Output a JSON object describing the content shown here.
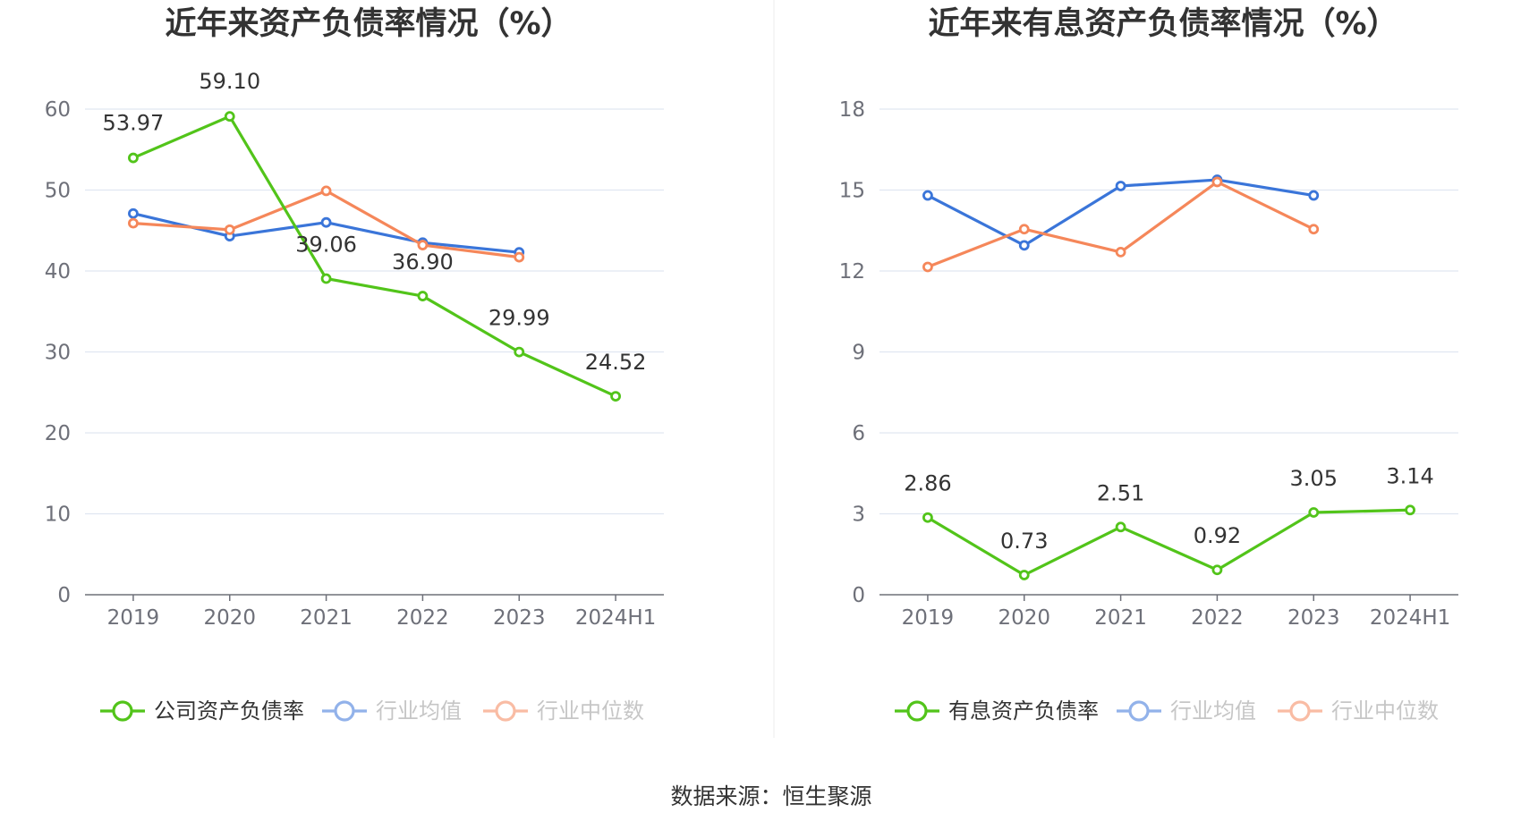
{
  "source_label": "数据来源：恒生聚源",
  "chart_data": [
    {
      "type": "line",
      "title": "近年来资产负债率情况（%）",
      "categories": [
        "2019",
        "2020",
        "2021",
        "2022",
        "2023",
        "2024H1"
      ],
      "ylim": [
        0,
        60
      ],
      "yticks": [
        0,
        10,
        20,
        30,
        40,
        50,
        60
      ],
      "grid": true,
      "legend_position": "bottom",
      "series": [
        {
          "name": "公司资产负债率",
          "color": "#52c41a",
          "values": [
            53.97,
            59.1,
            39.06,
            36.9,
            29.99,
            24.52
          ],
          "labels": [
            "53.97",
            "59.10",
            "39.06",
            "36.90",
            "29.99",
            "24.52"
          ]
        },
        {
          "name": "行业均值",
          "color": "#3a75d9",
          "values": [
            47.1,
            44.3,
            46.0,
            43.5,
            42.3,
            null
          ]
        },
        {
          "name": "行业中位数",
          "color": "#f5875a",
          "values": [
            45.9,
            45.1,
            49.9,
            43.2,
            41.7,
            null
          ]
        }
      ]
    },
    {
      "type": "line",
      "title": "近年来有息资产负债率情况（%）",
      "categories": [
        "2019",
        "2020",
        "2021",
        "2022",
        "2023",
        "2024H1"
      ],
      "ylim": [
        0,
        18
      ],
      "yticks": [
        0,
        3,
        6,
        9,
        12,
        15,
        18
      ],
      "grid": true,
      "legend_position": "bottom",
      "series": [
        {
          "name": "有息资产负债率",
          "color": "#52c41a",
          "values": [
            2.86,
            0.73,
            2.51,
            0.92,
            3.05,
            3.14
          ],
          "labels": [
            "2.86",
            "0.73",
            "2.51",
            "0.92",
            "3.05",
            "3.14"
          ]
        },
        {
          "name": "行业均值",
          "color": "#3a75d9",
          "values": [
            14.8,
            12.95,
            15.15,
            15.38,
            14.8,
            null
          ]
        },
        {
          "name": "行业中位数",
          "color": "#f5875a",
          "values": [
            12.15,
            13.55,
            12.7,
            15.3,
            13.55,
            null
          ]
        }
      ]
    }
  ]
}
